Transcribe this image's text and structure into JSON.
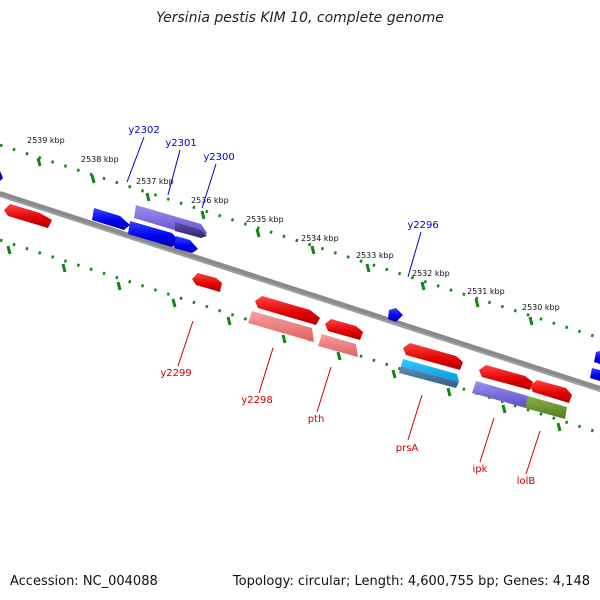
{
  "title": "Yersinia pestis KIM 10, complete genome",
  "footer": {
    "accession": "Accession: NC_004088",
    "summary": "Topology: circular; Length: 4,600,755 bp; Genes: 4,148"
  },
  "ticks": [
    {
      "label": "2539 kbp"
    },
    {
      "label": "2538 kbp"
    },
    {
      "label": "2537 kbp"
    },
    {
      "label": "2536 kbp"
    },
    {
      "label": "2535 kbp"
    },
    {
      "label": "2534 kbp"
    },
    {
      "label": "2533 kbp"
    },
    {
      "label": "2532 kbp"
    },
    {
      "label": "2531 kbp"
    },
    {
      "label": "2530 kbp"
    }
  ],
  "genes_forward": [
    {
      "name": "y2302",
      "color": "#0000ee"
    },
    {
      "name": "y2301",
      "color": "#0000ee"
    },
    {
      "name": "y2300",
      "color": "#0000ee"
    },
    {
      "name": "y2296",
      "color": "#0000ee"
    }
  ],
  "genes_reverse": [
    {
      "name": "y2299",
      "color": "#ee0000"
    },
    {
      "name": "y2298",
      "color": "#ee0000"
    },
    {
      "name": "pth",
      "color": "#ee0000"
    },
    {
      "name": "prsA",
      "color": "#ee0000"
    },
    {
      "name": "ipk",
      "color": "#ee0000"
    },
    {
      "name": "lolB",
      "color": "#ee0000"
    }
  ],
  "colors": {
    "backbone": "#777777",
    "tick": "#118811",
    "forward_strand": "#0000ee",
    "reverse_strand": "#ee0000",
    "forward_label": "#0000cc",
    "reverse_label": "#cc0000"
  }
}
